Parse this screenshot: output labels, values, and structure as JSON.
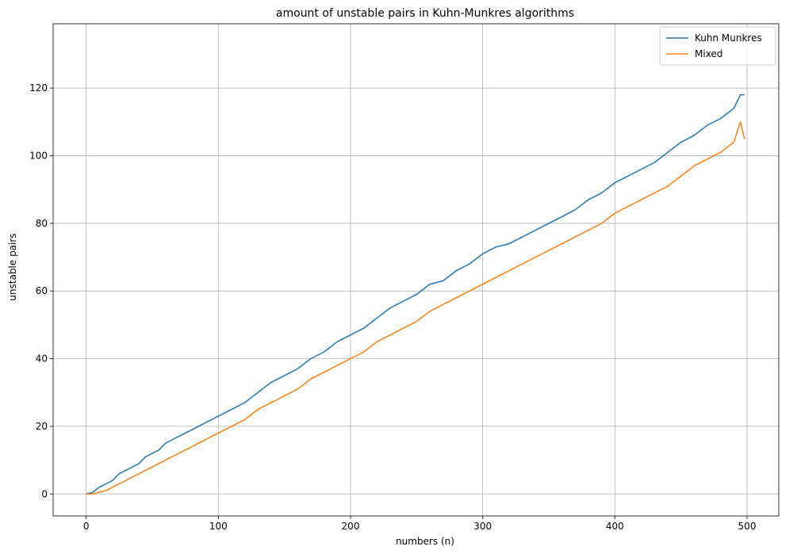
{
  "chart_data": {
    "type": "line",
    "title": "amount of unstable pairs in Kuhn-Munkres algorithms",
    "xlabel": "numbers (n)",
    "ylabel": "unstable pairs",
    "xlim": [
      -25,
      524
    ],
    "ylim": [
      -6.5,
      139
    ],
    "xticks": [
      0,
      100,
      200,
      300,
      400,
      500
    ],
    "yticks": [
      0,
      20,
      40,
      60,
      80,
      100,
      120
    ],
    "grid": true,
    "legend_position": "top-right",
    "colors": {
      "Kuhn Munkres": "#1f77b4",
      "Mixed": "#ff7f0e"
    },
    "series": [
      {
        "name": "Kuhn Munkres",
        "x": [
          0,
          5,
          10,
          15,
          20,
          25,
          30,
          35,
          40,
          45,
          50,
          55,
          60,
          65,
          70,
          75,
          80,
          85,
          90,
          95,
          100,
          110,
          120,
          130,
          140,
          150,
          160,
          170,
          180,
          190,
          200,
          210,
          220,
          230,
          240,
          250,
          260,
          270,
          280,
          290,
          300,
          310,
          320,
          330,
          340,
          350,
          360,
          370,
          380,
          390,
          400,
          410,
          420,
          430,
          440,
          450,
          460,
          470,
          480,
          490,
          495,
          498
        ],
        "y": [
          0,
          0.5,
          2,
          3,
          4,
          6,
          7,
          8,
          9,
          11,
          12,
          13,
          15,
          16,
          17,
          18,
          19,
          20,
          21,
          22,
          23,
          25,
          27,
          30,
          33,
          35,
          37,
          40,
          42,
          45,
          47,
          49,
          52,
          55,
          57,
          59,
          62,
          63,
          66,
          68,
          71,
          73,
          74,
          76,
          78,
          80,
          82,
          84,
          87,
          89,
          92,
          94,
          96,
          98,
          101,
          104,
          106,
          109,
          111,
          114,
          118,
          118
        ]
      },
      {
        "name": "Mixed",
        "x": [
          0,
          5,
          10,
          15,
          20,
          25,
          30,
          35,
          40,
          45,
          50,
          55,
          60,
          65,
          70,
          75,
          80,
          85,
          90,
          95,
          100,
          110,
          120,
          130,
          140,
          150,
          160,
          170,
          180,
          190,
          200,
          210,
          220,
          230,
          240,
          250,
          260,
          270,
          280,
          290,
          300,
          310,
          320,
          330,
          340,
          350,
          360,
          370,
          380,
          390,
          400,
          410,
          420,
          430,
          440,
          450,
          460,
          470,
          480,
          490,
          495,
          498
        ],
        "y": [
          0,
          0,
          0.5,
          1,
          2,
          3,
          4,
          5,
          6,
          7,
          8,
          9,
          10,
          11,
          12,
          13,
          14,
          15,
          16,
          17,
          18,
          20,
          22,
          25,
          27,
          29,
          31,
          34,
          36,
          38,
          40,
          42,
          45,
          47,
          49,
          51,
          54,
          56,
          58,
          60,
          62,
          64,
          66,
          68,
          70,
          72,
          74,
          76,
          78,
          80,
          83,
          85,
          87,
          89,
          91,
          94,
          97,
          99,
          101,
          104,
          110,
          105
        ]
      }
    ]
  }
}
